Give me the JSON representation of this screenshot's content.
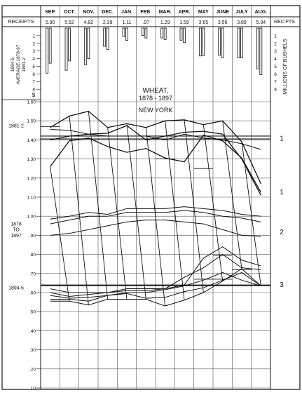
{
  "chart_data": {
    "type": "line",
    "title": "WHEAT,",
    "subtitle": "1878 - 1897",
    "place": "NEW YORK",
    "months": [
      "SEP.",
      "OCT.",
      "NOV.",
      "DEC.",
      "JAN.",
      "FEB.",
      "MAR.",
      "APR.",
      "MAY",
      "JUNE",
      "JULY",
      "AUG."
    ],
    "receipts_header": "RECEIPTS",
    "receipts_header_right": "REC'PTS",
    "receipts_values": [
      "5.90",
      "5.52",
      "4.82",
      "2.39",
      "1.11",
      ".97",
      "1.29",
      "1.59",
      "3.65",
      "3.56",
      "3.89",
      "5.34"
    ],
    "receipts_numeric": [
      5.9,
      5.52,
      4.82,
      2.39,
      1.11,
      0.97,
      1.29,
      1.59,
      3.65,
      3.56,
      3.89,
      5.34
    ],
    "receipts_secondary": [
      4.6,
      4.3,
      4.0,
      2.8,
      1.6,
      1.3,
      1.5,
      1.9,
      3.6,
      3.9,
      3.9,
      6.1
    ],
    "receipts_scale_ticks": [
      "1",
      "2",
      "3",
      "4",
      "5",
      "6",
      "7",
      "8"
    ],
    "receipts_axis_label": "MILLIONS OF BUSHELS",
    "receipts_left_label_lines": [
      "1894-5",
      "AVERAGE 1878-97",
      "1881-2"
    ],
    "dollar_sign": "$",
    "price_ticks": [
      "1.60",
      "1.50",
      "1.40",
      "1.30",
      "1.20",
      "1.10",
      "1.00",
      ".90",
      ".80",
      ".70",
      ".60",
      ".50",
      ".40",
      ".30",
      ".20",
      ".10"
    ],
    "ylim": [
      0.1,
      1.6
    ],
    "left_labels": [
      {
        "text": "1881-2",
        "y": 1.475
      },
      {
        "text": "1878",
        "y": 0.96
      },
      {
        "text": "TO",
        "y": 0.93
      },
      {
        "text": "1897",
        "y": 0.9
      },
      {
        "text": "1894-5",
        "y": 0.625
      }
    ],
    "right_labels": [
      {
        "text": "1",
        "y": 1.41
      },
      {
        "text": "1",
        "y": 1.13
      },
      {
        "text": "2",
        "y": 0.92
      },
      {
        "text": "3",
        "y": 0.645
      }
    ],
    "series": [
      {
        "values": [
          1.465,
          1.525,
          1.55,
          1.465,
          1.485,
          1.465,
          1.5,
          1.505,
          1.48,
          1.5,
          1.39,
          1.17
        ]
      },
      {
        "values": [
          1.4,
          1.42,
          1.43,
          1.435,
          1.475,
          1.4,
          1.42,
          1.44,
          1.445,
          1.43,
          1.3,
          1.11
        ]
      },
      {
        "values": [
          1.26,
          1.395,
          1.41,
          1.365,
          1.335,
          1.355,
          1.305,
          1.285,
          1.425,
          1.395,
          1.305,
          1.125
        ]
      },
      {
        "values": [
          1.455,
          1.45,
          1.43,
          1.42,
          1.42,
          1.42,
          1.4,
          1.43,
          1.41,
          1.4,
          1.38,
          1.35
        ]
      },
      {
        "values": [
          0.985,
          1.0,
          1.02,
          1.01,
          1.04,
          1.04,
          1.04,
          1.05,
          1.04,
          1.03,
          1.01,
          1.0
        ]
      },
      {
        "values": [
          0.96,
          0.98,
          1.0,
          1.0,
          1.02,
          1.02,
          1.02,
          1.03,
          1.02,
          1.0,
          0.99,
          0.97
        ]
      },
      {
        "values": [
          0.9,
          0.91,
          0.93,
          0.95,
          0.97,
          0.98,
          0.98,
          0.97,
          0.96,
          0.93,
          0.9,
          0.895
        ]
      },
      {
        "values": [
          0.585,
          0.57,
          0.575,
          0.585,
          0.6,
          0.6,
          0.615,
          0.635,
          0.665,
          0.705,
          0.665,
          0.635
        ]
      },
      {
        "values": [
          0.565,
          0.565,
          0.555,
          0.585,
          0.595,
          0.57,
          0.575,
          0.605,
          0.625,
          0.665,
          0.705,
          0.635
        ]
      },
      {
        "values": [
          0.555,
          0.555,
          0.535,
          0.565,
          0.565,
          0.565,
          0.53,
          0.56,
          0.6,
          0.66,
          0.725,
          0.635
        ]
      },
      {
        "values": [
          0.6,
          0.58,
          0.59,
          0.6,
          0.61,
          0.61,
          0.62,
          0.64,
          0.78,
          0.84,
          0.77,
          0.74
        ]
      },
      {
        "values": [
          0.62,
          0.6,
          0.6,
          0.6,
          0.62,
          0.62,
          0.62,
          0.68,
          0.73,
          0.8,
          0.73,
          0.72
        ]
      }
    ],
    "reference_lines": [
      {
        "y": 1.42
      },
      {
        "y": 1.405
      },
      {
        "y": 0.64
      },
      {
        "y": 0.635
      }
    ],
    "connector_segments": [
      {
        "start": [
          0,
          1.26
        ],
        "end": [
          1,
          0.555
        ]
      },
      {
        "start": [
          1,
          1.525
        ],
        "end": [
          2,
          0.535
        ]
      },
      {
        "start": [
          2,
          1.55
        ],
        "end": [
          3,
          0.565
        ]
      },
      {
        "start": [
          3,
          1.465
        ],
        "end": [
          4,
          0.565
        ]
      },
      {
        "start": [
          4,
          1.485
        ],
        "end": [
          5,
          0.565
        ]
      },
      {
        "start": [
          5,
          1.465
        ],
        "end": [
          6,
          0.53
        ]
      },
      {
        "start": [
          6,
          1.5
        ],
        "end": [
          7,
          0.56
        ]
      },
      {
        "start": [
          7,
          1.505
        ],
        "end": [
          8,
          0.6
        ]
      },
      {
        "start": [
          8,
          1.48
        ],
        "end": [
          9,
          0.66
        ]
      },
      {
        "start": [
          9,
          1.5
        ],
        "end": [
          10,
          0.725
        ]
      },
      {
        "start": [
          10,
          1.39
        ],
        "end": [
          11,
          0.635
        ]
      }
    ],
    "step_marks": [
      {
        "from_month": 0,
        "to_month": 1,
        "y": 1.47
      },
      {
        "from_month": 6,
        "to_month": 7,
        "y": 1.3
      },
      {
        "from_month": 8,
        "to_month": 9,
        "y": 1.25
      },
      {
        "from_month": 8,
        "to_month": 10,
        "y": 0.67
      },
      {
        "from_month": 9,
        "to_month": 10,
        "y": 0.795
      },
      {
        "from_month": 10,
        "to_month": 11,
        "y": 0.72
      }
    ]
  }
}
